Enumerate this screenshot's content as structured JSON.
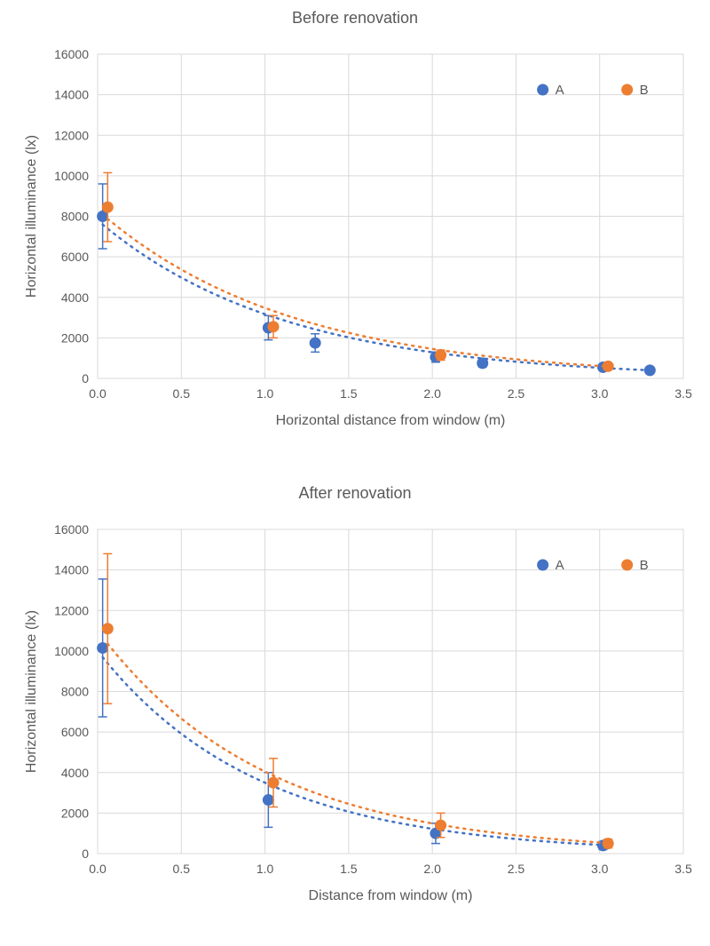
{
  "colors": {
    "seriesA": "#4472c4",
    "seriesB": "#ed7d31",
    "grid": "#d9d9d9",
    "text": "#595959",
    "background": "#ffffff"
  },
  "marker_radius": 6.5,
  "error_cap_halfwidth": 5,
  "chart1": {
    "title": "Before renovation",
    "xlabel": "Horizontal distance from window (m)",
    "ylabel": "Horizontal illuminance (lx)",
    "xlim": [
      0.0,
      3.5
    ],
    "ylim": [
      0,
      16000
    ],
    "xticks": [
      0.0,
      0.5,
      1.0,
      1.5,
      2.0,
      2.5,
      3.0,
      3.5
    ],
    "yticks": [
      0,
      2000,
      4000,
      6000,
      8000,
      10000,
      12000,
      14000,
      16000
    ],
    "legend": [
      {
        "label": "A",
        "color_key": "seriesA"
      },
      {
        "label": "B",
        "color_key": "seriesB"
      }
    ],
    "seriesA": {
      "points": [
        {
          "x": 0.03,
          "y": 8000,
          "err": 1600
        },
        {
          "x": 1.02,
          "y": 2500,
          "err": 600
        },
        {
          "x": 1.3,
          "y": 1750,
          "err": 450
        },
        {
          "x": 2.02,
          "y": 1050,
          "err": 250
        },
        {
          "x": 2.3,
          "y": 750,
          "err": 180
        },
        {
          "x": 3.02,
          "y": 550,
          "err": 130
        },
        {
          "x": 3.3,
          "y": 400,
          "err": 100
        }
      ],
      "trend": {
        "a": 7800,
        "b": 0.9,
        "xstart": 0.03,
        "xend": 3.3
      }
    },
    "seriesB": {
      "points": [
        {
          "x": 0.06,
          "y": 8450,
          "err": 1700
        },
        {
          "x": 1.05,
          "y": 2550,
          "err": 550
        },
        {
          "x": 2.05,
          "y": 1150,
          "err": 250
        },
        {
          "x": 3.05,
          "y": 600,
          "err": 130
        }
      ],
      "trend": {
        "a": 8300,
        "b": 0.87,
        "xstart": 0.06,
        "xend": 3.05
      }
    }
  },
  "chart2": {
    "title": "After renovation",
    "xlabel": "Distance from window (m)",
    "ylabel": "Horizontal illuminance (lx)",
    "xlim": [
      0.0,
      3.5
    ],
    "ylim": [
      0,
      16000
    ],
    "xticks": [
      0.0,
      0.5,
      1.0,
      1.5,
      2.0,
      2.5,
      3.0,
      3.5
    ],
    "yticks": [
      0,
      2000,
      4000,
      6000,
      8000,
      10000,
      12000,
      14000,
      16000
    ],
    "legend": [
      {
        "label": "A",
        "color_key": "seriesA"
      },
      {
        "label": "B",
        "color_key": "seriesB"
      }
    ],
    "seriesA": {
      "points": [
        {
          "x": 0.03,
          "y": 10150,
          "err": 3400
        },
        {
          "x": 1.02,
          "y": 2650,
          "err": 1350
        },
        {
          "x": 2.02,
          "y": 1000,
          "err": 500
        },
        {
          "x": 3.02,
          "y": 400,
          "err": 200
        }
      ],
      "trend": {
        "a": 10000,
        "b": 1.05,
        "xstart": 0.03,
        "xend": 3.02
      }
    },
    "seriesB": {
      "points": [
        {
          "x": 0.06,
          "y": 11100,
          "err": 3700
        },
        {
          "x": 1.05,
          "y": 3500,
          "err": 1200
        },
        {
          "x": 2.05,
          "y": 1400,
          "err": 600
        },
        {
          "x": 3.05,
          "y": 500,
          "err": 220
        }
      ],
      "trend": {
        "a": 11000,
        "b": 1.0,
        "xstart": 0.06,
        "xend": 3.05
      }
    }
  }
}
